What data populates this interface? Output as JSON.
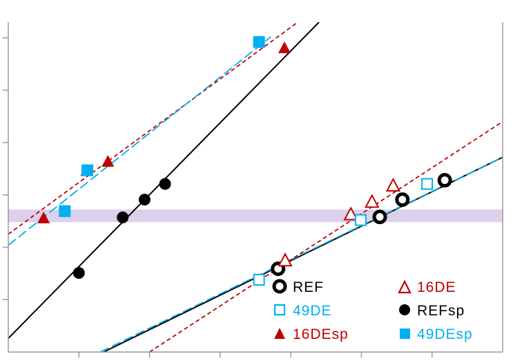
{
  "chart_data": {
    "type": "scatter",
    "title": "",
    "xlabel": "",
    "ylabel": "",
    "xlim": [
      0,
      7
    ],
    "ylim": [
      0,
      6.3
    ],
    "grid": false,
    "x_ticks": [
      1,
      2,
      3,
      4,
      5,
      6
    ],
    "y_ticks": [
      1,
      2,
      3,
      4,
      5,
      6
    ],
    "band": {
      "y_min": 2.48,
      "y_max": 2.72,
      "color": "#ddd0ec"
    },
    "legend": {
      "placement": "bottom-right",
      "columns": 2
    },
    "series": [
      {
        "name": "REF",
        "marker": "circle-open",
        "color": "#000000",
        "points": [
          [
            3.82,
            1.59
          ],
          [
            5.26,
            2.58
          ],
          [
            5.58,
            2.91
          ],
          [
            6.18,
            3.28
          ]
        ]
      },
      {
        "name": "16DE",
        "marker": "triangle-open",
        "color": "#c00000",
        "points": [
          [
            3.92,
            1.74
          ],
          [
            4.85,
            2.62
          ],
          [
            5.15,
            2.86
          ],
          [
            5.45,
            3.17
          ]
        ]
      },
      {
        "name": "49DE",
        "marker": "square-open",
        "color": "#00b0f0",
        "points": [
          [
            3.55,
            1.38
          ],
          [
            4.99,
            2.52
          ],
          [
            5.93,
            3.21
          ]
        ]
      },
      {
        "name": "REFsp",
        "marker": "circle-filled",
        "color": "#000000",
        "points": [
          [
            1.0,
            1.51
          ],
          [
            1.62,
            2.57
          ],
          [
            1.93,
            2.91
          ],
          [
            2.22,
            3.21
          ]
        ]
      },
      {
        "name": "16DEsp",
        "marker": "triangle-filled",
        "color": "#c00000",
        "points": [
          [
            0.5,
            2.55
          ],
          [
            1.11,
            3.46
          ],
          [
            1.41,
            3.63
          ],
          [
            3.91,
            5.8
          ]
        ]
      },
      {
        "name": "49DEsp",
        "marker": "square-filled",
        "color": "#00b0f0",
        "points": [
          [
            0.8,
            2.69
          ],
          [
            1.12,
            3.47
          ],
          [
            3.55,
            5.92
          ]
        ]
      }
    ],
    "fit_lines": [
      {
        "series": "REFsp",
        "style": "solid",
        "color": "#000000",
        "x": [
          0,
          4.4
        ],
        "y": [
          0.26,
          6.3
        ]
      },
      {
        "series": "16DEsp",
        "style": "dotted",
        "color": "#c00000",
        "x": [
          0,
          4.1
        ],
        "y": [
          2.25,
          6.3
        ]
      },
      {
        "series": "49DEsp",
        "style": "dashed",
        "color": "#00b0f0",
        "x": [
          0,
          3.72
        ],
        "y": [
          2.04,
          6.02
        ]
      },
      {
        "series": "REF",
        "style": "solid",
        "color": "#000000",
        "x": [
          1.35,
          7.0
        ],
        "y": [
          0.0,
          3.72
        ]
      },
      {
        "series": "49DE",
        "style": "dashed",
        "color": "#00b0f0",
        "x": [
          1.3,
          7.0
        ],
        "y": [
          0.0,
          3.72
        ]
      },
      {
        "series": "16DE",
        "style": "dotted",
        "color": "#c00000",
        "x": [
          2.0,
          7.0
        ],
        "y": [
          0.0,
          4.4
        ]
      }
    ]
  }
}
